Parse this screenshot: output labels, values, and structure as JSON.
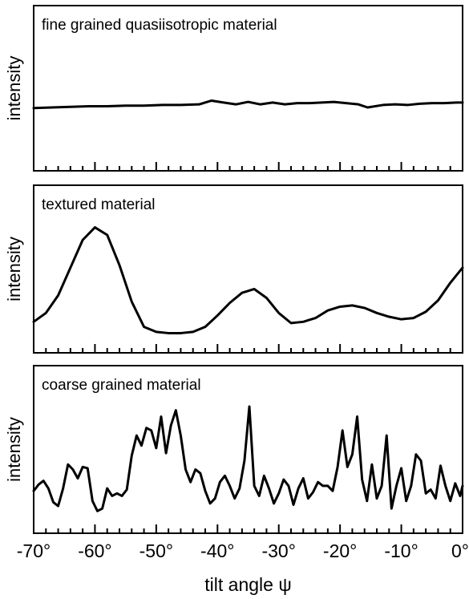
{
  "chart_data": [
    {
      "type": "line",
      "title": "fine grained quasiisotropic material",
      "ylabel": "intensity",
      "xlim": [
        -70,
        0
      ],
      "ylim": [
        0,
        1
      ],
      "x": [
        -70,
        -67,
        -64,
        -61,
        -58,
        -55,
        -52,
        -49,
        -46,
        -43,
        -41,
        -39,
        -37,
        -35,
        -33,
        -31,
        -29,
        -27,
        -25,
        -23,
        -21,
        -19,
        -17,
        -15.5,
        -13,
        -11,
        -9,
        -7,
        -5,
        -3,
        -1,
        0
      ],
      "y": [
        0.43,
        0.435,
        0.44,
        0.445,
        0.445,
        0.45,
        0.45,
        0.455,
        0.455,
        0.46,
        0.49,
        0.475,
        0.46,
        0.48,
        0.46,
        0.475,
        0.46,
        0.47,
        0.47,
        0.475,
        0.48,
        0.47,
        0.46,
        0.435,
        0.455,
        0.46,
        0.455,
        0.465,
        0.47,
        0.47,
        0.475,
        0.475
      ]
    },
    {
      "type": "line",
      "title": "textured material",
      "ylabel": "intensity",
      "xlim": [
        -70,
        0
      ],
      "ylim": [
        0,
        1
      ],
      "x": [
        -70,
        -68,
        -66,
        -64,
        -62,
        -60,
        -58,
        -56,
        -54,
        -52,
        -50,
        -48,
        -46,
        -44,
        -42,
        -40,
        -38,
        -36,
        -34,
        -32,
        -30,
        -28,
        -26,
        -24,
        -22,
        -20,
        -18,
        -16,
        -14,
        -12,
        -10,
        -8,
        -6,
        -4,
        -2,
        0
      ],
      "y": [
        0.17,
        0.24,
        0.38,
        0.6,
        0.82,
        0.92,
        0.86,
        0.62,
        0.33,
        0.13,
        0.09,
        0.08,
        0.08,
        0.09,
        0.13,
        0.22,
        0.32,
        0.4,
        0.43,
        0.36,
        0.24,
        0.16,
        0.17,
        0.2,
        0.26,
        0.29,
        0.3,
        0.28,
        0.24,
        0.21,
        0.19,
        0.2,
        0.25,
        0.34,
        0.48,
        0.6
      ]
    },
    {
      "type": "line",
      "title": "coarse grained material",
      "ylabel": "intensity",
      "xlim": [
        -70,
        0
      ],
      "ylim": [
        0,
        1
      ],
      "x": [
        -70,
        -69.2,
        -68.4,
        -67.6,
        -66.8,
        -66,
        -65.2,
        -64.4,
        -63.6,
        -62.8,
        -62,
        -61.2,
        -60.4,
        -59.6,
        -58.8,
        -58,
        -57.2,
        -56.4,
        -55.6,
        -54.8,
        -54,
        -53.2,
        -52.4,
        -51.6,
        -50.8,
        -50,
        -49.2,
        -48.4,
        -47.6,
        -46.8,
        -46,
        -45.2,
        -44.4,
        -43.6,
        -42.8,
        -42,
        -41.2,
        -40.4,
        -39.6,
        -38.8,
        -38,
        -37.2,
        -36.4,
        -35.6,
        -34.8,
        -34,
        -33.2,
        -32.4,
        -31.6,
        -30.8,
        -30,
        -29.2,
        -28.4,
        -27.6,
        -26.8,
        -26,
        -25.2,
        -24.4,
        -23.6,
        -22.8,
        -22,
        -21.2,
        -20.4,
        -19.6,
        -18.8,
        -18,
        -17.2,
        -16.4,
        -15.6,
        -14.8,
        -14,
        -13.2,
        -12.4,
        -11.6,
        -10.8,
        -10,
        -9.2,
        -8.4,
        -7.6,
        -6.8,
        -6,
        -5.2,
        -4.4,
        -3.6,
        -2.8,
        -2,
        -1.2,
        -0.4,
        0
      ],
      "y": [
        0.26,
        0.31,
        0.34,
        0.28,
        0.17,
        0.14,
        0.28,
        0.47,
        0.43,
        0.36,
        0.45,
        0.44,
        0.18,
        0.1,
        0.12,
        0.28,
        0.22,
        0.24,
        0.22,
        0.27,
        0.54,
        0.7,
        0.62,
        0.76,
        0.74,
        0.6,
        0.85,
        0.56,
        0.78,
        0.9,
        0.7,
        0.43,
        0.33,
        0.43,
        0.4,
        0.26,
        0.16,
        0.2,
        0.33,
        0.38,
        0.3,
        0.2,
        0.28,
        0.5,
        0.93,
        0.3,
        0.22,
        0.38,
        0.28,
        0.16,
        0.24,
        0.35,
        0.3,
        0.15,
        0.28,
        0.36,
        0.2,
        0.25,
        0.33,
        0.3,
        0.3,
        0.26,
        0.45,
        0.74,
        0.45,
        0.55,
        0.85,
        0.35,
        0.18,
        0.47,
        0.2,
        0.3,
        0.7,
        0.12,
        0.3,
        0.44,
        0.18,
        0.3,
        0.55,
        0.5,
        0.24,
        0.27,
        0.2,
        0.46,
        0.3,
        0.18,
        0.32,
        0.22,
        0.3
      ]
    }
  ],
  "x_axis": {
    "label": "tilt angle ψ",
    "ticks": [
      {
        "value": -70,
        "label": "-70°"
      },
      {
        "value": -60,
        "label": "-60°"
      },
      {
        "value": -50,
        "label": "-50°"
      },
      {
        "value": -40,
        "label": "-40°"
      },
      {
        "value": -30,
        "label": "-30°"
      },
      {
        "value": -20,
        "label": "-20°"
      },
      {
        "value": -10,
        "label": "-10°"
      },
      {
        "value": 0,
        "label": "0°"
      }
    ],
    "minor_step": 2
  }
}
